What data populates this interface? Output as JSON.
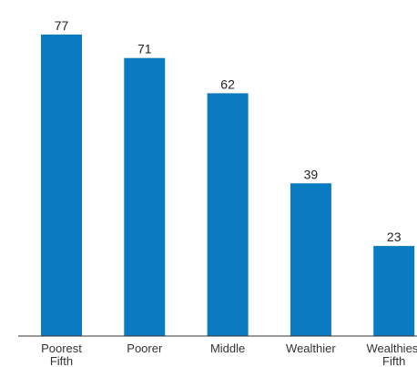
{
  "chart_data": {
    "type": "bar",
    "title": "",
    "xlabel": "",
    "ylabel": "",
    "ylim": [
      0,
      80
    ],
    "grid": false,
    "legend": "none",
    "bar_color": "#0a7bc2",
    "categories": [
      [
        "Poorest",
        "Fifth"
      ],
      [
        "Poorer"
      ],
      [
        "Middle"
      ],
      [
        "Wealthier"
      ],
      [
        "Wealthiest",
        "Fifth"
      ]
    ],
    "values": [
      77,
      71,
      62,
      39,
      23
    ]
  }
}
